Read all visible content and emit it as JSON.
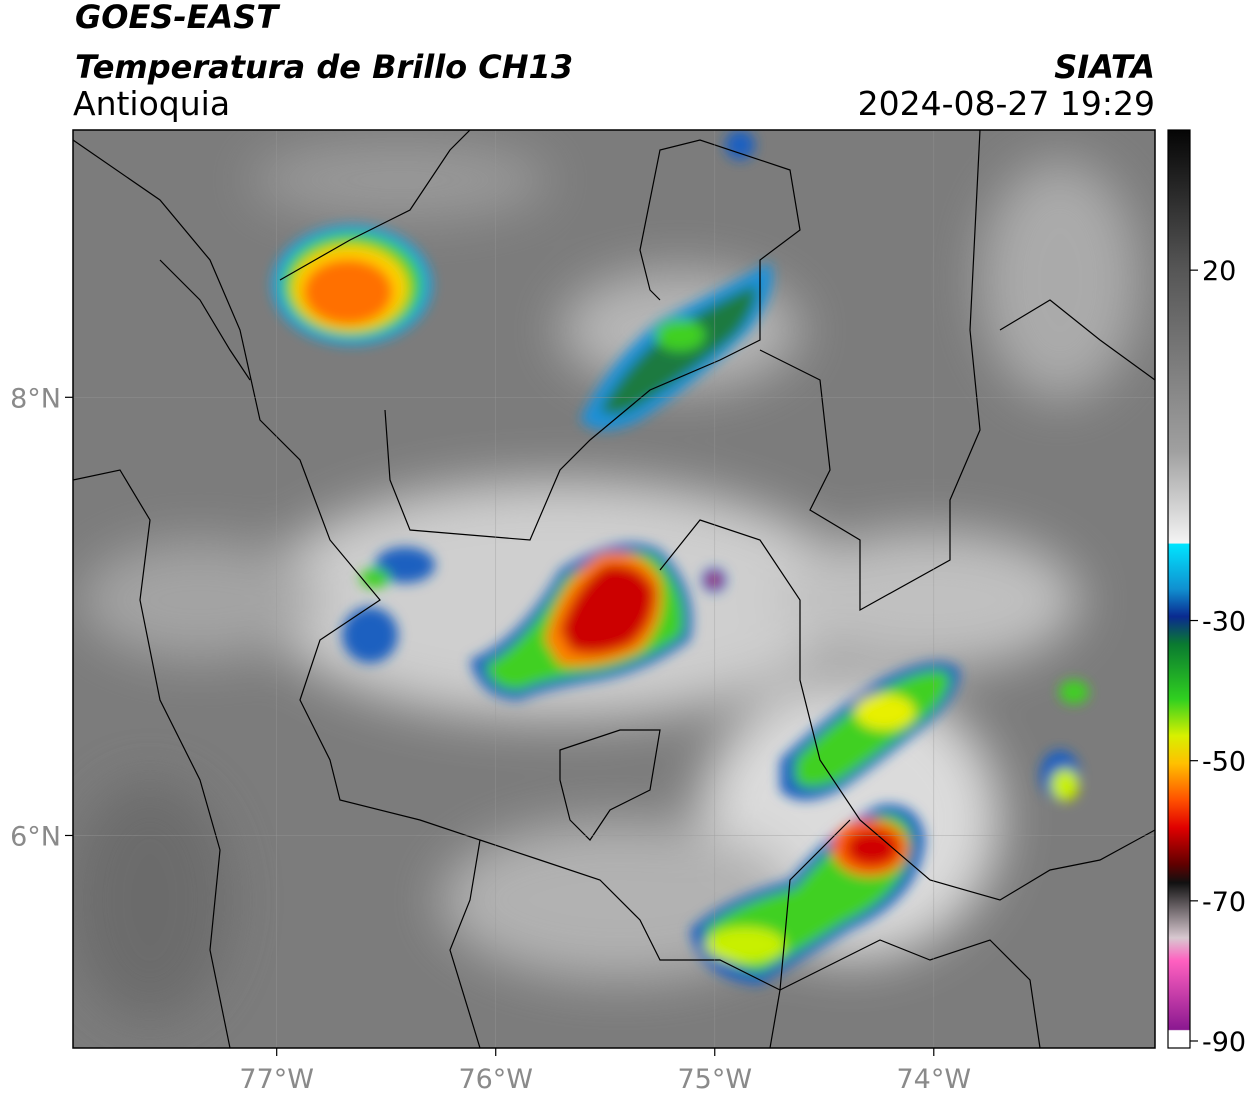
{
  "header": {
    "title": "GOES-EAST",
    "subtitle": "Temperatura de Brillo CH13",
    "region": "Antioquia",
    "source": "SIATA",
    "timestamp": "2024-08-27 19:29"
  },
  "map": {
    "xlim": [
      -77.93,
      -72.99
    ],
    "ylim": [
      5.03,
      9.22
    ],
    "xticks": [
      {
        "value": -77,
        "label": "77°W"
      },
      {
        "value": -76,
        "label": "76°W"
      },
      {
        "value": -75,
        "label": "75°W"
      },
      {
        "value": -74,
        "label": "74°W"
      }
    ],
    "yticks": [
      {
        "value": 8,
        "label": "8°N"
      },
      {
        "value": 6,
        "label": "6°N"
      }
    ],
    "grid": true
  },
  "colorbar": {
    "lim": [
      -91,
      40
    ],
    "ticks": [
      20,
      -30,
      -50,
      -70,
      -90
    ]
  }
}
